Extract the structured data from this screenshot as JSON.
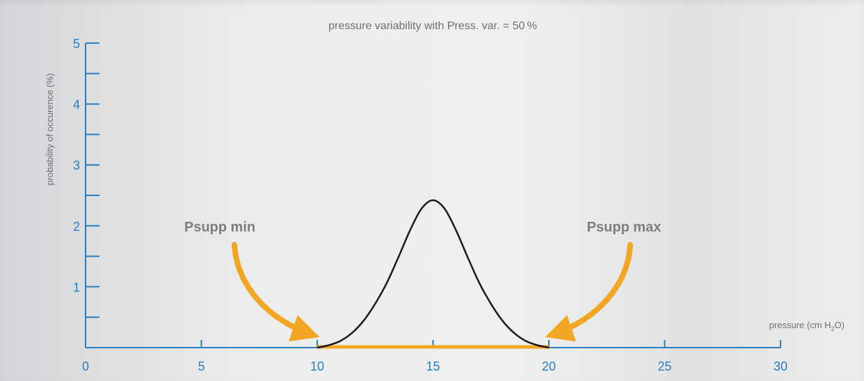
{
  "chart_data": {
    "type": "line",
    "title": "pressure variability with Press. var. = 50 %",
    "xlabel_prefix": "pressure (cm H",
    "xlabel_sub": "2",
    "xlabel_suffix": "O)",
    "ylabel": "probability of occurence (%)",
    "xlim": [
      0,
      30
    ],
    "ylim": [
      0,
      5
    ],
    "x_ticks": [
      0,
      5,
      10,
      15,
      20,
      25,
      30
    ],
    "y_ticks": [
      1,
      2,
      3,
      4,
      5
    ],
    "y_minor_ticks": [
      0.5,
      1.5,
      2.5,
      3.5,
      4.5
    ],
    "grid": false,
    "series": [
      {
        "color": "#1a1a1a",
        "x": [
          10,
          10.5,
          11,
          11.5,
          12,
          12.5,
          13,
          13.5,
          14,
          14.5,
          15,
          15.5,
          16,
          16.5,
          17,
          17.5,
          18,
          18.5,
          19,
          19.5,
          20
        ],
        "y": [
          0.0,
          0.04,
          0.11,
          0.24,
          0.44,
          0.72,
          1.06,
          1.48,
          1.92,
          2.28,
          2.42,
          2.28,
          1.92,
          1.48,
          1.06,
          0.72,
          0.44,
          0.24,
          0.11,
          0.04,
          0.0
        ]
      }
    ],
    "range_bar": {
      "from": 10,
      "to": 20,
      "color": "#f2a623"
    },
    "annotations": [
      {
        "text": "Psupp min",
        "points_to": 10
      },
      {
        "text": "Psupp max",
        "points_to": 20
      }
    ],
    "colors": {
      "axis": "#2a7dc0",
      "text": "#6f6f6f",
      "arrow": "#f2a623"
    }
  }
}
